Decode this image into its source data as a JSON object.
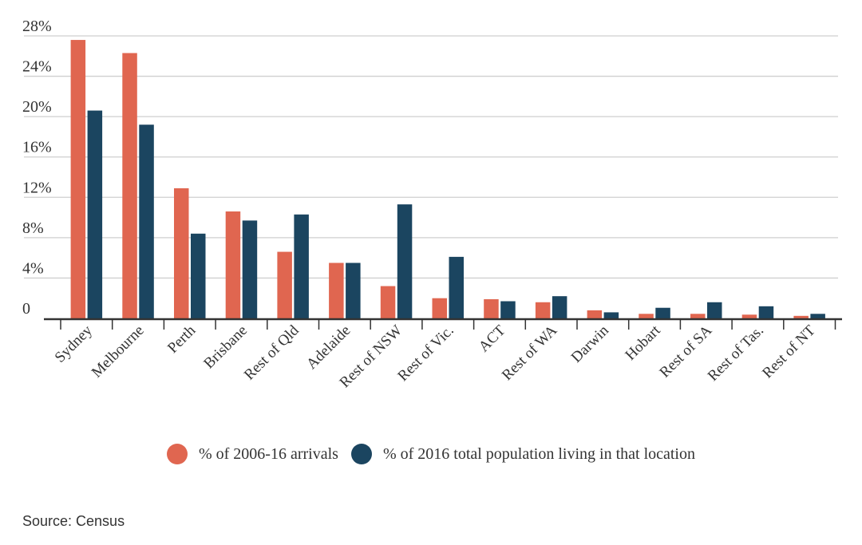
{
  "chart_data": {
    "type": "bar",
    "title": "",
    "xlabel": "",
    "ylabel": "",
    "ylim": [
      0,
      28
    ],
    "yticks": [
      0,
      4,
      8,
      12,
      16,
      20,
      24,
      28
    ],
    "ytick_labels": [
      "0",
      "4%",
      "8%",
      "12%",
      "16%",
      "20%",
      "24%",
      "28%"
    ],
    "grid": true,
    "legend_position": "bottom-center",
    "categories": [
      "Sydney",
      "Melbourne",
      "Perth",
      "Brisbane",
      "Rest of Qld",
      "Adelaide",
      "Rest of NSW",
      "Rest of Vic.",
      "ACT",
      "Rest of WA",
      "Darwin",
      "Hobart",
      "Rest of SA",
      "Rest of Tas.",
      "Rest of NT"
    ],
    "series": [
      {
        "name": "% of 2006-16 arrivals",
        "color": "#e06650",
        "values": [
          27.6,
          26.3,
          12.9,
          10.6,
          6.6,
          5.5,
          3.2,
          2.0,
          1.9,
          1.6,
          0.8,
          0.45,
          0.45,
          0.37,
          0.25
        ]
      },
      {
        "name": "% of 2016 total population living in that location",
        "color": "#1b4560",
        "values": [
          20.6,
          19.2,
          8.4,
          9.7,
          10.3,
          5.5,
          11.3,
          6.1,
          1.7,
          2.2,
          0.6,
          1.05,
          1.6,
          1.2,
          0.45
        ]
      }
    ]
  },
  "source": "Source: Census"
}
